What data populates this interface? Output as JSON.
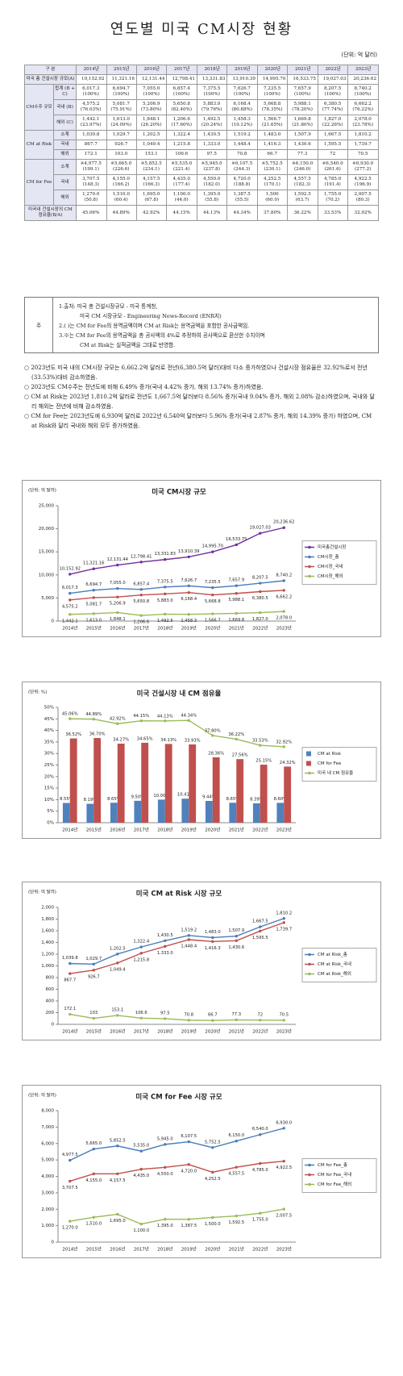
{
  "header": {
    "title": "연도별 미국 CM시장 현황",
    "unit": "(단위: 억 달러)"
  },
  "table": {
    "corner": "구 분",
    "years": [
      "2014년",
      "2015년",
      "2016년",
      "2017년",
      "2018년",
      "2019년",
      "2020년",
      "2021년",
      "2022년",
      "2023년"
    ],
    "total_market": {
      "label": "미국 총 건설시장 규모(A)",
      "values": [
        "10,152.92",
        "11,321.16",
        "12,131.44",
        "12,798.41",
        "13,331.83",
        "13,910.39",
        "14,995.70",
        "16,533.75",
        "19,027.03",
        "20,236.62"
      ]
    },
    "groups": [
      {
        "label": "CM수주 규모",
        "rows": [
          {
            "label": "합계 (B + C)",
            "values": [
              "6,017.3",
              "6,694.7",
              "7,055.0",
              "6,857.4",
              "7,375.5",
              "7,626.7",
              "7,235.5",
              "7,657.9",
              "8,207.5",
              "8,740.2"
            ],
            "subs": [
              "(100%)",
              "(100%)",
              "(100%)",
              "(100%)",
              "(100%)",
              "(100%)",
              "(100%)",
              "(100%)",
              "(100%)",
              "(100%)"
            ]
          },
          {
            "label": "국내 (B)",
            "values": [
              "4,575.2",
              "5,081.7",
              "5,206.9",
              "5,650.8",
              "5,883.0",
              "6,168.4",
              "5,668.8",
              "5,988.1",
              "6,380.5",
              "6,662.2"
            ],
            "subs": [
              "(76.03%)",
              "(75.91%)",
              "(73.80%)",
              "(82.40%)",
              "(79.76%)",
              "(80.88%)",
              "(78.35%)",
              "(78.20%)",
              "(77.74%)",
              "(76.22%)"
            ]
          },
          {
            "label": "해외 (C)",
            "values": [
              "1,442.1",
              "1,613.0",
              "1,848.1",
              "1,206.6",
              "1,492.5",
              "1,458.3",
              "1,566.7",
              "1,669.8",
              "1,827.0",
              "2,078.0"
            ],
            "subs": [
              "(23.97%)",
              "(24.09%)",
              "(26.20%)",
              "(17.60%)",
              "(20.24%)",
              "(19.12%)",
              "(21.65%)",
              "(21.80%)",
              "(22.26%)",
              "(23.78%)"
            ]
          }
        ]
      },
      {
        "label": "CM at Risk",
        "rows": [
          {
            "label": "소계",
            "values": [
              "1,039.8",
              "1,029.7",
              "1,202.5",
              "1,322.4",
              "1,430.5",
              "1,519.2",
              "1,483.0",
              "1,507.9",
              "1,667.5",
              "1,810.2"
            ]
          },
          {
            "label": "국내",
            "values": [
              "867.7",
              "926.7",
              "1,049.4",
              "1,215.8",
              "1,333.0",
              "1,448.4",
              "1,416.3",
              "1,430.6",
              "1,595.5",
              "1,739.7"
            ]
          },
          {
            "label": "해외",
            "values": [
              "172.1",
              "103.0",
              "153.1",
              "106.6",
              "97.5",
              "70.8",
              "66.7",
              "77.3",
              "72",
              "70.5"
            ]
          }
        ]
      },
      {
        "label": "CM for Fee",
        "rows": [
          {
            "label": "소계",
            "values": [
              "※4,977.5",
              "※5,665.0",
              "※5,852.5",
              "※5,535.0",
              "※5,945.0",
              "※6,107.5",
              "※5,752.5",
              "※6,150.0",
              "※6,540.0",
              "※6,930.0"
            ],
            "subs": [
              "(199.1)",
              "(226.6)",
              "(234.1)",
              "(221.4)",
              "(237.8)",
              "(244.3)",
              "(230.1)",
              "(246.0)",
              "(261.6)",
              "(277.2)"
            ]
          },
          {
            "label": "국내",
            "values": [
              "3,707.5",
              "4,155.0",
              "4,157.5",
              "4,435.0",
              "4,550.0",
              "4,720.0",
              "4,252.5",
              "4,557.5",
              "4,785.0",
              "4,922.5"
            ],
            "subs": [
              "(148.3)",
              "(166.2)",
              "(166.3)",
              "(177.4)",
              "(182.0)",
              "(188.8)",
              "(170.1)",
              "(182.3)",
              "(191.4)",
              "(196.9)"
            ]
          },
          {
            "label": "해외",
            "values": [
              "1,270.0",
              "1,510.0",
              "1,695.0",
              "1,100.0",
              "1,395.0",
              "1,387.5",
              "1,500",
              "1,592.5",
              "1,755.0",
              "2,007.5"
            ],
            "subs": [
              "(50.8)",
              "(60.4)",
              "(67.8)",
              "(44.0)",
              "(55.8)",
              "(55.5)",
              "(60.0)",
              "(63.7)",
              "(70.2)",
              "(80.3)"
            ]
          }
        ]
      }
    ],
    "share_row": {
      "label": "미국내 건설시장의 CM 점유율(B/A)",
      "values": [
        "45.06%",
        "44.89%",
        "42.92%",
        "44.15%",
        "44.13%",
        "44.34%",
        "37.80%",
        "36.22%",
        "33.53%",
        "32.92%"
      ]
    }
  },
  "notes": {
    "label": "주",
    "lines": [
      "1.출처: 미국 총 건설시장규모 - 미국 통계청,",
      "미국 CM 시장규모 - Engineering News-Record (ENR지)",
      "2.( )는 CM for Fee의 용역금액이며 CM at Risk는 용역금액을 포함한 공사금액임.",
      "3.※는 CM for Fee의 용역금액을 총 공사액의 4%로 추정하여 공사액으로 환산한 수치이며",
      "CM at Risk는 실적금액을 그대로 반영함."
    ]
  },
  "bullets": [
    "○ 2023년도 미국 내의 CM시장 규모는 6,662.2억 달러로 전년(6,380.5억 달러)대비 다소 증가하였으나 건설시장 점유율은 32.92%로서 전년(33.53%)대비 감소하였음.",
    "○ 2023년도 CM수주는 전년도에 비해 6.49% 증가(국내 4.42% 증가, 해외 13.74% 증가)하였음.",
    "○ CM at Risk는 2023년 1,810.2억 달러로 전년도 1,667.5억 달러보다 8.56% 증가(국내 9.04% 증가, 해외 2.08% 감소)하였으며, 국내와 달리 해외는 전년에 비해 감소하였음.",
    "○ CM for Fee는 2023년도에 6,930억 달러로 2022년 6,540억 달러보다 5.96% 증가(국내 2.87% 증가, 해외 14.39% 증가) 하였으며, CM at Risk와 달리 국내와 해외 모두 증가하였음."
  ],
  "chart_data": [
    {
      "type": "line",
      "title": "미국 CM시장 규모",
      "unit": "(단위: 억 달러)",
      "categories": [
        "2014년",
        "2015년",
        "2016년",
        "2017년",
        "2018년",
        "2019년",
        "2020년",
        "2021년",
        "2022년",
        "2023년"
      ],
      "ylim": [
        0,
        25000
      ],
      "yticks": [
        0,
        {
          "value": 5000,
          "label": "5,000"
        },
        {
          "value": 10000,
          "label": "10,000"
        },
        {
          "value": 15000,
          "label": "15,000"
        },
        {
          "value": 20000,
          "label": "20,000"
        },
        {
          "value": 25000,
          "label": "25,000"
        }
      ],
      "series": [
        {
          "name": "미국총건설시장",
          "color": "#7030a0",
          "values": [
            10152.92,
            11321.16,
            12131.44,
            12798.41,
            13331.83,
            13910.39,
            14995.7,
            16533.75,
            19027.03,
            20236.62
          ],
          "value_labels": [
            "10,152.92",
            "11,321.16",
            "12,131.44",
            "12,798.41",
            "13,331.83",
            "13,910.39",
            "14,995.70",
            "16,533.75",
            "19,027.03",
            "20,236.62"
          ]
        },
        {
          "name": "CM시장_총",
          "color": "#4a7ebb",
          "values": [
            6017.3,
            6694.7,
            7055.0,
            6857.4,
            7375.5,
            7626.7,
            7235.5,
            7657.9,
            8207.5,
            8740.2
          ],
          "value_labels": [
            "6,017.3",
            "6,694.7",
            "7,055.0",
            "6,857.4",
            "7,375.5",
            "7,626.7",
            "7,235.5",
            "7,657.9",
            "8,207.5",
            "8,740.2"
          ]
        },
        {
          "name": "CM시장_국내",
          "color": "#c0504d",
          "values": [
            4575.2,
            5081.7,
            5206.9,
            5650.8,
            5883.0,
            6168.4,
            5668.8,
            5988.1,
            6380.5,
            6662.2
          ],
          "value_labels": [
            "4,575.2",
            "5,081.7",
            "5,206.9",
            "5,650.8",
            "5,883.0",
            "6,168.4",
            "5,668.8",
            "5,988.1",
            "6,380.5",
            "6,662.2"
          ]
        },
        {
          "name": "CM시장_해외",
          "color": "#9bbb59",
          "values": [
            1442.1,
            1613.0,
            1848.1,
            1206.6,
            1492.5,
            1458.3,
            1566.7,
            1669.8,
            1827.0,
            2078.0
          ],
          "value_labels": [
            "1,442.1",
            "1,613.0",
            "1,848.1",
            "1,206.6",
            "1,492.5",
            "1,458.3",
            "1,566.7",
            "1,669.8",
            "1,827.0",
            "2,078.0"
          ]
        }
      ]
    },
    {
      "type": "combo",
      "title": "미국 건설시장 내 CM 점유율",
      "unit": "(단위: %)",
      "categories": [
        "2014년",
        "2015년",
        "2016년",
        "2017년",
        "2018년",
        "2019년",
        "2020년",
        "2021년",
        "2022년",
        "2023년"
      ],
      "ylim": [
        0,
        50
      ],
      "yticks": [
        {
          "value": 0,
          "label": "0%"
        },
        {
          "value": 5,
          "label": "5%"
        },
        {
          "value": 10,
          "label": "10%"
        },
        {
          "value": 15,
          "label": "15%"
        },
        {
          "value": 20,
          "label": "20%"
        },
        {
          "value": 25,
          "label": "25%"
        },
        {
          "value": 30,
          "label": "30%"
        },
        {
          "value": 35,
          "label": "35%"
        },
        {
          "value": 40,
          "label": "40%"
        },
        {
          "value": 45,
          "label": "45%"
        },
        {
          "value": 50,
          "label": "50%"
        }
      ],
      "series": [
        {
          "name": "CM at Risk",
          "type": "bar",
          "color": "#4f81bd",
          "values": [
            8.55,
            8.19,
            8.65,
            9.5,
            10.0,
            10.41,
            9.44,
            8.65,
            8.39,
            8.6
          ],
          "value_labels": [
            "8.55%",
            "8.19%",
            "8.65%",
            "9.50%",
            "10.00%",
            "10.41%",
            "9.44%",
            "8.65%",
            "8.39%",
            "8.60%"
          ]
        },
        {
          "name": "CM for Fee",
          "type": "bar",
          "color": "#c0504d",
          "values": [
            36.52,
            36.7,
            34.27,
            34.65,
            34.13,
            33.93,
            28.36,
            27.56,
            25.15,
            24.32
          ],
          "value_labels": [
            "36.52%",
            "36.70%",
            "34.27%",
            "34.65%",
            "34.13%",
            "33.93%",
            "28.36%",
            "27.56%",
            "25.15%",
            "24.32%"
          ]
        },
        {
          "name": "미국 내 CM 점유율",
          "type": "line",
          "color": "#9bbb59",
          "values": [
            45.06,
            44.89,
            42.92,
            44.15,
            44.13,
            44.34,
            37.8,
            36.22,
            33.53,
            32.92
          ],
          "value_labels": [
            "45.06%",
            "44.89%",
            "42.92%",
            "44.15%",
            "44.13%",
            "44.34%",
            "37.80%",
            "36.22%",
            "33.53%",
            "32.92%"
          ]
        }
      ]
    },
    {
      "type": "line",
      "title": "미국 CM at Risk 시장 규모",
      "unit": "(단위: 억 달러)",
      "categories": [
        "2014년",
        "2015년",
        "2016년",
        "2017년",
        "2018년",
        "2019년",
        "2020년",
        "2021년",
        "2022년",
        "2023년"
      ],
      "ylim": [
        0,
        2000
      ],
      "yticks": [
        0,
        200,
        400,
        600,
        800,
        {
          "value": 1000,
          "label": "1,000"
        },
        {
          "value": 1200,
          "label": "1,200"
        },
        {
          "value": 1400,
          "label": "1,400"
        },
        {
          "value": 1600,
          "label": "1,600"
        },
        {
          "value": 1800,
          "label": "1,800"
        },
        {
          "value": 2000,
          "label": "2,000"
        }
      ],
      "series": [
        {
          "name": "CM at Risk_총",
          "color": "#4a7ebb",
          "values": [
            1039.8,
            1029.7,
            1202.5,
            1322.4,
            1430.5,
            1519.2,
            1483.0,
            1507.9,
            1667.5,
            1810.2
          ],
          "value_labels": [
            "1,039.8",
            "1,029.7",
            "1,202.5",
            "1,322.4",
            "1,430.5",
            "1,519.2",
            "1,483.0",
            "1,507.9",
            "1,667.5",
            "1,810.2"
          ]
        },
        {
          "name": "CM at Risk_국내",
          "color": "#c0504d",
          "values": [
            867.7,
            926.7,
            1049.4,
            1215.8,
            1333.0,
            1448.4,
            1416.3,
            1430.6,
            1595.5,
            1739.7
          ],
          "value_labels": [
            "867.7",
            "926.7",
            "1,049.4",
            "1,215.8",
            "1,333.0",
            "1,448.4",
            "1,416.3",
            "1,430.6",
            "1,595.5",
            "1,739.7"
          ]
        },
        {
          "name": "CM at Risk_해외",
          "color": "#9bbb59",
          "values": [
            172.1,
            103,
            153.1,
            106.6,
            97.5,
            70.8,
            66.7,
            77.3,
            72,
            70.5
          ]
        }
      ]
    },
    {
      "type": "line",
      "title": "미국 CM for Fee 시장 규모",
      "unit": "(단위: 억 달러)",
      "categories": [
        "2014년",
        "2015년",
        "2016년",
        "2017년",
        "2018년",
        "2019년",
        "2020년",
        "2021년",
        "2022년",
        "2023년"
      ],
      "ylim": [
        0,
        8000
      ],
      "yticks": [
        0,
        {
          "value": 1000,
          "label": "1,000"
        },
        {
          "value": 2000,
          "label": "2,000"
        },
        {
          "value": 3000,
          "label": "3,000"
        },
        {
          "value": 4000,
          "label": "4,000"
        },
        {
          "value": 5000,
          "label": "5,000"
        },
        {
          "value": 6000,
          "label": "6,000"
        },
        {
          "value": 7000,
          "label": "7,000"
        },
        {
          "value": 8000,
          "label": "8,000"
        }
      ],
      "series": [
        {
          "name": "CM for Fee_총",
          "color": "#4a7ebb",
          "values": [
            4977.5,
            5665.0,
            5852.5,
            5535.0,
            5945.0,
            6107.5,
            5752.5,
            6150.0,
            6540.0,
            6930.0
          ],
          "value_labels": [
            "4,977.5",
            "5,665.0",
            "5,852.5",
            "5,535.0",
            "5,945.0",
            "6,107.5",
            "5,752.5",
            "6,150.0",
            "6,540.0",
            "6,930.0"
          ]
        },
        {
          "name": "CM for Fee_국내",
          "color": "#c0504d",
          "values": [
            3707.5,
            4155.0,
            4157.5,
            4435.0,
            4550.0,
            4720.0,
            4252.5,
            4557.5,
            4785.0,
            4922.5
          ],
          "value_labels": [
            "3,707.5",
            "4,155.0",
            "4,157.5",
            "4,435.0",
            "4,550.0",
            "4,720.0",
            "4,252.5",
            "4,557.5",
            "4,785.0",
            "4,922.5"
          ]
        },
        {
          "name": "CM for Fee_해외",
          "color": "#9bbb59",
          "values": [
            1270.0,
            1510.0,
            1695.0,
            1100.0,
            1395.0,
            1387.5,
            1500.0,
            1592.5,
            1755.0,
            2007.5
          ],
          "value_labels": [
            "1,270.0",
            "1,510.0",
            "1,695.0",
            "1,100.0",
            "1,395.0",
            "1,387.5",
            "1,500.0",
            "1,592.5",
            "1,755.0",
            "2,007.5"
          ]
        }
      ]
    }
  ]
}
